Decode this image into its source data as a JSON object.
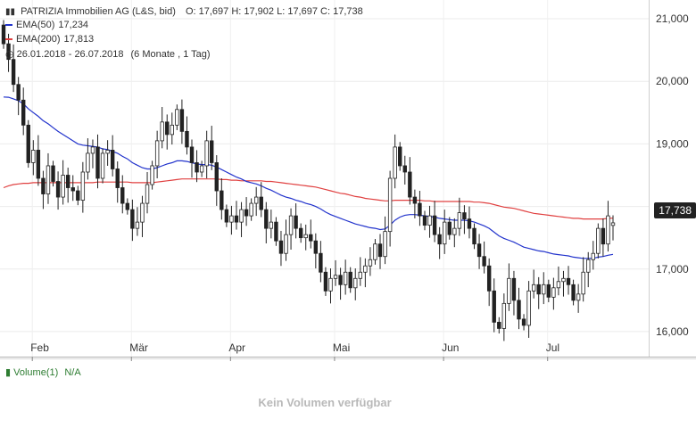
{
  "header": {
    "title": "PATRIZIA Immobilien AG (L&S, bid)",
    "ohlc": "O: 17,697  H: 17,902  L: 17,697  C: 17,738",
    "ema50_label": "EMA(50)",
    "ema50_value": "17,234",
    "ema50_color": "#2233cc",
    "ema200_label": "EMA(200)",
    "ema200_value": "17,813",
    "ema200_color": "#e04040",
    "range": "26.01.2018 - 26.07.2018",
    "range_detail": "(6 Monate , 1 Tag)"
  },
  "volume": {
    "label": "Volume(1)",
    "value": "N/A",
    "empty_message": "Kein Volumen verfügbar"
  },
  "last_price": "17,738",
  "chart_data": {
    "type": "candlestick",
    "x_ticks": [
      "Feb",
      "Mär",
      "Apr",
      "Mai",
      "Jun",
      "Jul"
    ],
    "y_ticks": [
      "16,000",
      "17,000",
      "18,000",
      "19,000",
      "20,000",
      "21,000"
    ],
    "ylim": [
      15600,
      21300
    ],
    "grid": true,
    "close": [
      20600,
      20350,
      19950,
      19700,
      19300,
      18700,
      18900,
      18450,
      18200,
      18650,
      18400,
      18150,
      18500,
      18300,
      18250,
      18100,
      18550,
      18850,
      18950,
      18450,
      18850,
      18900,
      18600,
      18300,
      18050,
      17950,
      17650,
      17750,
      18050,
      18350,
      18650,
      19050,
      19350,
      19150,
      19300,
      19550,
      19200,
      18950,
      18700,
      18550,
      18650,
      19050,
      18700,
      18250,
      17950,
      17750,
      17850,
      17750,
      17950,
      17850,
      18050,
      18150,
      17950,
      17650,
      17750,
      17450,
      17250,
      17550,
      17850,
      17650,
      17500,
      17550,
      17450,
      17250,
      16950,
      16650,
      16850,
      16900,
      16750,
      16950,
      16700,
      16850,
      16950,
      17050,
      17150,
      17400,
      17200,
      17600,
      18450,
      18950,
      18650,
      18550,
      18150,
      18050,
      17850,
      17700,
      17850,
      17550,
      17400,
      17750,
      17550,
      17650,
      17900,
      17800,
      17650,
      17400,
      17200,
      17050,
      16650,
      16150,
      16050,
      16450,
      16850,
      16500,
      16200,
      16100,
      16650,
      16750,
      16600,
      16750,
      16550,
      16700,
      16800,
      16850,
      16750,
      16500,
      16600,
      16950,
      17150,
      17250,
      17650,
      17400,
      17850,
      17738
    ],
    "open": [
      20900,
      20600,
      20350,
      19950,
      19700,
      19300,
      18700,
      18900,
      18450,
      18200,
      18650,
      18400,
      18150,
      18500,
      18300,
      18250,
      18100,
      18550,
      18850,
      18950,
      18450,
      18850,
      18900,
      18600,
      18300,
      18050,
      17950,
      17650,
      17750,
      18050,
      18350,
      18650,
      19050,
      19350,
      19150,
      19300,
      19550,
      19200,
      18950,
      18700,
      18550,
      18650,
      19050,
      18700,
      18250,
      17950,
      17750,
      17850,
      17750,
      17950,
      17850,
      18050,
      18150,
      17950,
      17650,
      17750,
      17450,
      17250,
      17550,
      17850,
      17650,
      17500,
      17550,
      17450,
      17250,
      16950,
      16650,
      16850,
      16900,
      16750,
      16950,
      16700,
      16850,
      16950,
      17050,
      17150,
      17400,
      17200,
      17600,
      18450,
      18950,
      18650,
      18550,
      18150,
      18050,
      17850,
      17700,
      17850,
      17550,
      17400,
      17750,
      17550,
      17650,
      17900,
      17800,
      17650,
      17400,
      17200,
      17050,
      16650,
      16150,
      16050,
      16450,
      16850,
      16500,
      16200,
      16100,
      16650,
      16750,
      16600,
      16750,
      16550,
      16700,
      16800,
      16850,
      16750,
      16500,
      16600,
      16950,
      17150,
      17250,
      17650,
      17400,
      17697
    ],
    "ema50": [
      19750,
      19745,
      19720,
      19690,
      19640,
      19560,
      19500,
      19440,
      19370,
      19320,
      19260,
      19200,
      19150,
      19100,
      19050,
      19000,
      18980,
      18970,
      18960,
      18950,
      18920,
      18910,
      18880,
      18850,
      18800,
      18760,
      18700,
      18660,
      18620,
      18600,
      18600,
      18620,
      18650,
      18680,
      18700,
      18730,
      18730,
      18720,
      18700,
      18680,
      18670,
      18670,
      18660,
      18630,
      18590,
      18550,
      18510,
      18470,
      18440,
      18400,
      18380,
      18360,
      18330,
      18290,
      18260,
      18220,
      18180,
      18150,
      18130,
      18100,
      18080,
      18050,
      18030,
      18000,
      17960,
      17910,
      17870,
      17840,
      17810,
      17780,
      17750,
      17720,
      17700,
      17680,
      17660,
      17650,
      17630,
      17640,
      17700,
      17780,
      17830,
      17860,
      17870,
      17870,
      17860,
      17850,
      17840,
      17830,
      17810,
      17800,
      17790,
      17780,
      17780,
      17780,
      17770,
      17750,
      17720,
      17690,
      17650,
      17590,
      17530,
      17490,
      17460,
      17430,
      17390,
      17350,
      17330,
      17310,
      17290,
      17280,
      17260,
      17240,
      17230,
      17220,
      17210,
      17190,
      17180,
      17170,
      17170,
      17170,
      17190,
      17200,
      17220,
      17234
    ],
    "ema200": [
      18300,
      18330,
      18350,
      18360,
      18370,
      18370,
      18380,
      18380,
      18380,
      18380,
      18380,
      18380,
      18380,
      18380,
      18380,
      18380,
      18380,
      18380,
      18380,
      18390,
      18390,
      18390,
      18390,
      18390,
      18390,
      18390,
      18380,
      18380,
      18380,
      18380,
      18380,
      18390,
      18400,
      18410,
      18420,
      18430,
      18440,
      18440,
      18440,
      18440,
      18440,
      18440,
      18440,
      18440,
      18430,
      18430,
      18420,
      18420,
      18410,
      18410,
      18410,
      18410,
      18410,
      18400,
      18400,
      18390,
      18380,
      18370,
      18360,
      18350,
      18340,
      18330,
      18320,
      18310,
      18290,
      18270,
      18250,
      18230,
      18210,
      18200,
      18180,
      18160,
      18150,
      18130,
      18120,
      18110,
      18100,
      18090,
      18090,
      18100,
      18100,
      18100,
      18100,
      18100,
      18100,
      18090,
      18090,
      18080,
      18080,
      18080,
      18080,
      18080,
      18080,
      18080,
      18080,
      18070,
      18070,
      18060,
      18050,
      18030,
      18010,
      17990,
      17980,
      17970,
      17950,
      17930,
      17910,
      17890,
      17880,
      17870,
      17860,
      17850,
      17840,
      17830,
      17820,
      17810,
      17810,
      17800,
      17800,
      17800,
      17800,
      17800,
      17810,
      17813
    ]
  }
}
